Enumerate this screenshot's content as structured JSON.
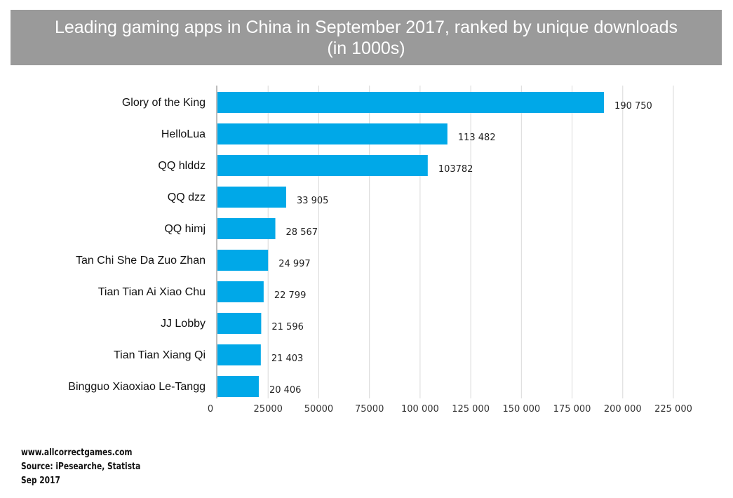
{
  "title": "Leading gaming apps in China in September 2017, ranked by unique downloads (in 1000s)",
  "footer": {
    "site": "www.allcorrectgames.com",
    "source": "Source: iPesearche, Statista",
    "date": "Sep 2017"
  },
  "chart_data": {
    "type": "bar",
    "orientation": "horizontal",
    "title": "Leading gaming apps in China in September 2017, ranked by unique downloads (in 1000s)",
    "categories": [
      "Glory of the King",
      "HelloLua",
      "QQ hlddz",
      "QQ dzz",
      "QQ himj",
      "Tan Chi She Da Zuo Zhan",
      "Tian Tian Ai Xiao Chu",
      "JJ Lobby",
      "Tian Tian Xiang Qi",
      "Bingguo Xiaoxiao Le-Tangg"
    ],
    "values": [
      190750,
      113482,
      103782,
      33905,
      28567,
      24997,
      22799,
      21596,
      21403,
      20406
    ],
    "data_labels": [
      "190 750",
      "113 482",
      "103782",
      "33 905",
      "28 567",
      "24 997",
      "22 799",
      "21 596",
      "21 403",
      "20 406"
    ],
    "xticks": [
      0,
      25000,
      50000,
      75000,
      100000,
      125000,
      150000,
      175000,
      200000,
      225000
    ],
    "xtick_labels": [
      "0",
      "25000",
      "50000",
      "75000",
      "100 000",
      "125 000",
      "150 000",
      "175 000",
      "200 000",
      "225 000"
    ],
    "xlim": [
      0,
      225000
    ],
    "grid": true,
    "bar_color": "#00a8e8"
  }
}
